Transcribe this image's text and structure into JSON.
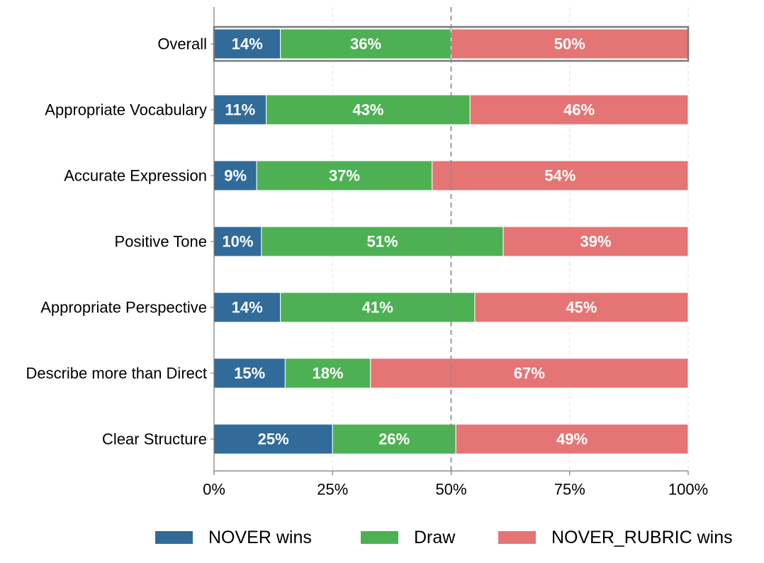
{
  "chart_data": {
    "type": "bar",
    "orientation": "horizontal",
    "stacked": true,
    "categories": [
      "Overall",
      "Appropriate Vocabulary",
      "Accurate Expression",
      "Positive Tone",
      "Appropriate Perspective",
      "Describe more than Direct",
      "Clear Structure"
    ],
    "series": [
      {
        "name": "NOVER wins",
        "color": "#306b9a",
        "values": [
          14,
          11,
          9,
          10,
          14,
          15,
          25
        ],
        "labels": [
          "14%",
          "11%",
          "9%",
          "10%",
          "14%",
          "15%",
          "25%"
        ]
      },
      {
        "name": "Draw",
        "color": "#4db153",
        "values": [
          36,
          43,
          37,
          51,
          41,
          18,
          26
        ],
        "labels": [
          "36%",
          "43%",
          "37%",
          "51%",
          "41%",
          "18%",
          "26%"
        ]
      },
      {
        "name": "NOVER_RUBRIC wins",
        "color": "#e57575",
        "values": [
          50,
          46,
          54,
          39,
          45,
          67,
          49
        ],
        "labels": [
          "50%",
          "46%",
          "54%",
          "39%",
          "45%",
          "67%",
          "49%"
        ]
      }
    ],
    "xlim": [
      0,
      100
    ],
    "x_ticks": [
      0,
      25,
      50,
      75,
      100
    ],
    "x_tick_labels": [
      "0%",
      "25%",
      "50%",
      "75%",
      "100%"
    ],
    "reference_line": 50,
    "highlighted_category": "Overall",
    "title": "",
    "xlabel": "",
    "ylabel": "",
    "grid": "vertical dashed",
    "legend_position": "bottom"
  }
}
